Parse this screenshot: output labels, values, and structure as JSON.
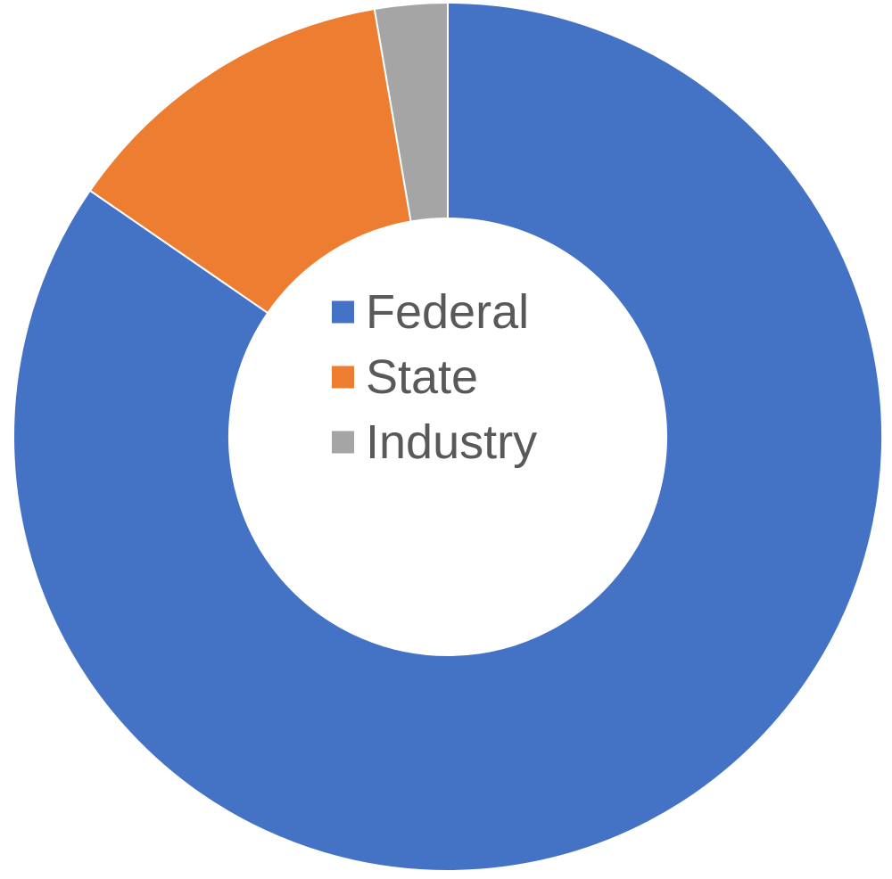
{
  "chart_data": {
    "type": "pie",
    "variant": "doughnut",
    "title": "",
    "categories": [
      "Federal",
      "State",
      "Industry"
    ],
    "values": [
      84.6,
      12.7,
      2.7
    ],
    "colors": [
      "#4472C4",
      "#ED7D31",
      "#A5A5A5"
    ],
    "legend": {
      "placement": "center",
      "entries": [
        "Federal",
        "State",
        "Industry"
      ]
    },
    "data_labels": false
  }
}
